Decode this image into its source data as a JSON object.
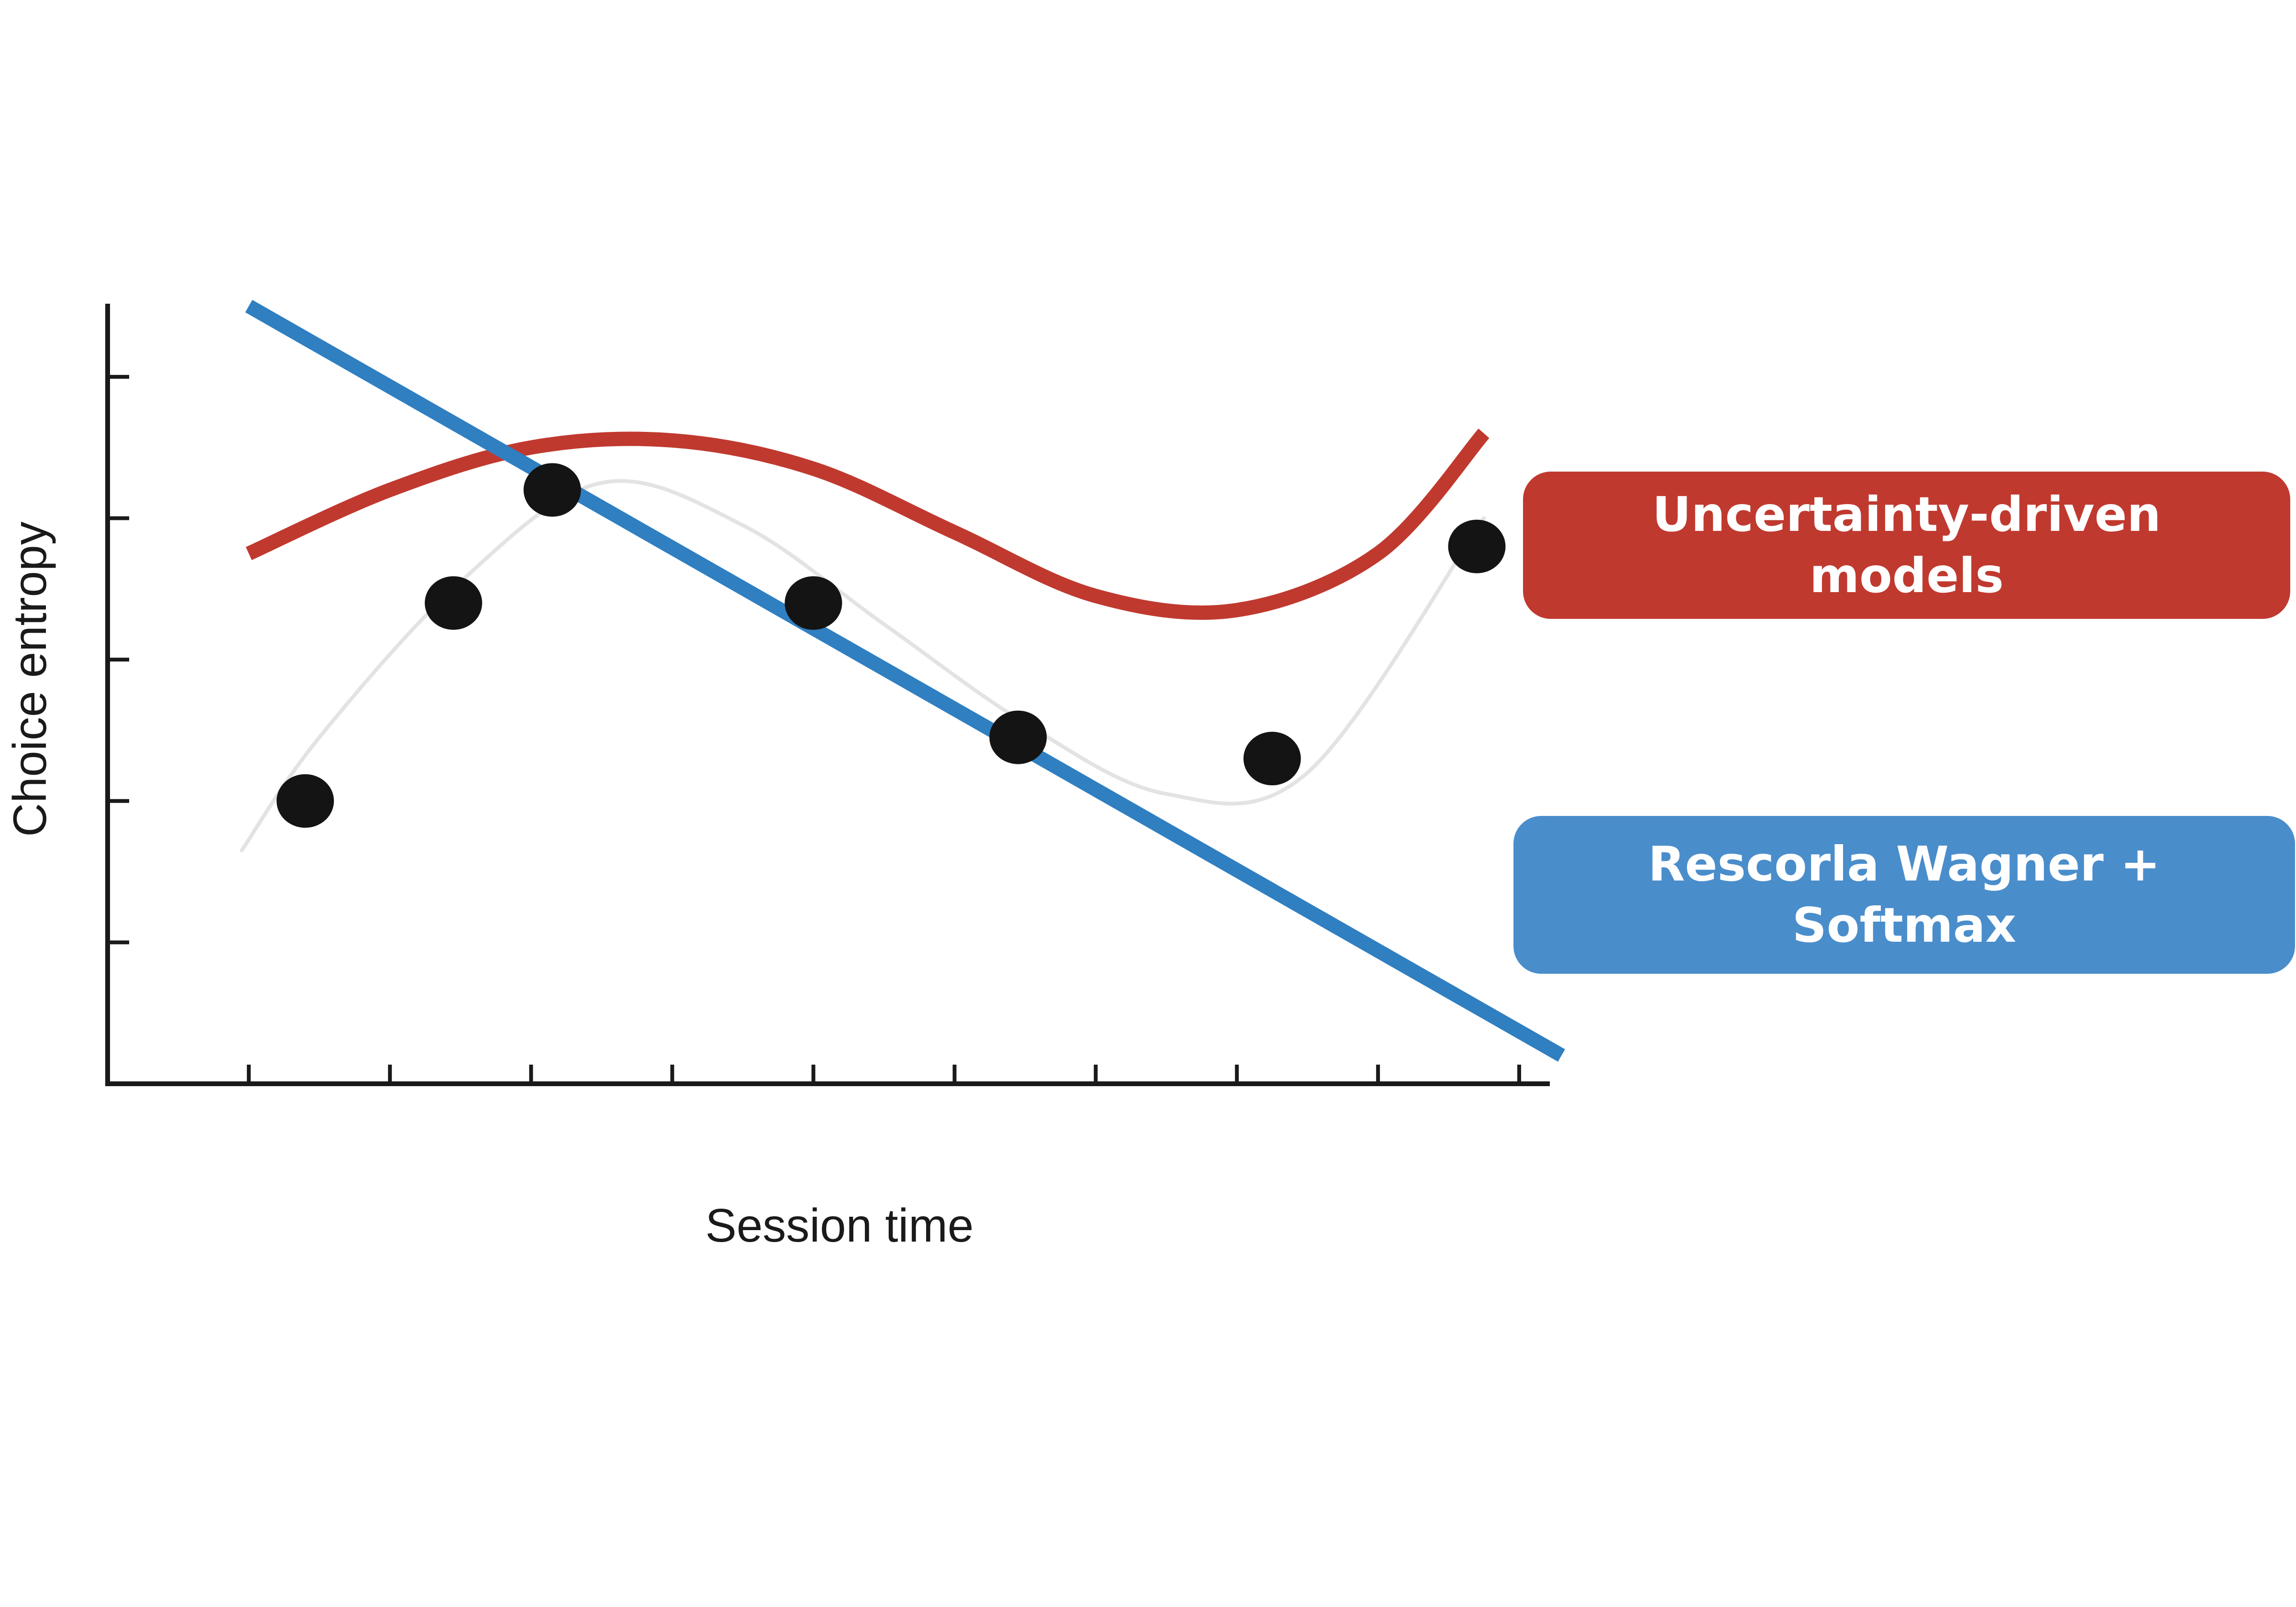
{
  "chart_data": {
    "type": "line",
    "title": "",
    "xlabel": "Session time",
    "ylabel": "Choice entropy",
    "xlim": [
      0,
      10.2
    ],
    "ylim": [
      0,
      5.5
    ],
    "x_ticks": [
      1,
      2,
      3,
      4,
      5,
      6,
      7,
      8,
      9,
      10
    ],
    "y_ticks": [
      1,
      2,
      3,
      4,
      5
    ],
    "grid": false,
    "observed_points": {
      "x": [
        1.4,
        2.45,
        3.15,
        5.0,
        6.45,
        8.25,
        9.7
      ],
      "y": [
        2.0,
        3.4,
        4.2,
        3.4,
        2.45,
        2.3,
        3.8
      ]
    },
    "series": [
      {
        "name": "Uncertainty-driven models",
        "color": "#c0392f",
        "x": [
          1.0,
          2.0,
          3.0,
          4.0,
          5.0,
          6.0,
          7.0,
          8.0,
          9.0,
          9.75
        ],
        "y": [
          3.75,
          4.2,
          4.5,
          4.55,
          4.35,
          3.9,
          3.45,
          3.35,
          3.75,
          4.6
        ]
      },
      {
        "name": "Rescorla Wagner + Softmax",
        "color": "#2f7fc1",
        "x": [
          1.0,
          10.3
        ],
        "y": [
          5.5,
          0.2
        ]
      }
    ],
    "model_fit_curve": {
      "color": "#e3e3e3",
      "x": [
        0.95,
        1.5,
        2.5,
        3.5,
        4.5,
        5.5,
        6.5,
        7.5,
        8.5,
        9.75
      ],
      "y": [
        1.65,
        2.45,
        3.55,
        4.25,
        3.95,
        3.25,
        2.55,
        2.05,
        2.2,
        4.0
      ]
    },
    "legend": {
      "placement": "right",
      "entries": [
        {
          "label": "Uncertainty-driven models",
          "color": "#c0392f"
        },
        {
          "label": "Rescorla Wagner + Softmax",
          "color": "#4a8dcb"
        }
      ]
    }
  }
}
